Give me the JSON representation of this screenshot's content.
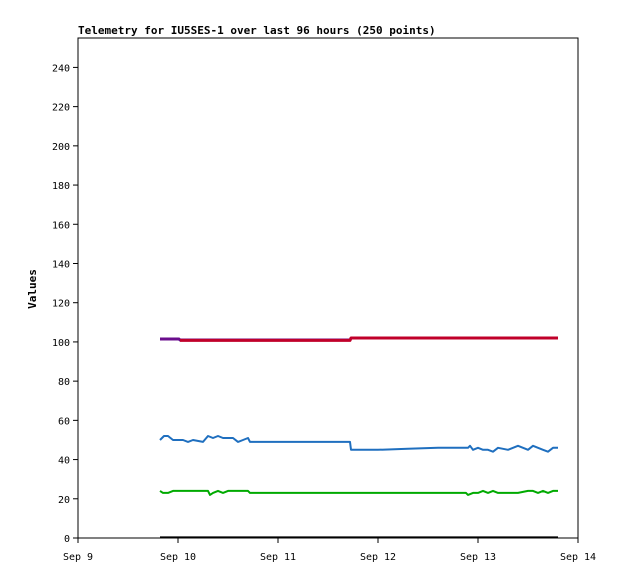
{
  "chart_data": {
    "type": "line",
    "title": "Telemetry for IU5SES-1 over last 96 hours (250 points)",
    "ylabel": "Values",
    "xlabel": "",
    "x_ticks": [
      "Sep 9",
      "Sep 10",
      "Sep 11",
      "Sep 12",
      "Sep 13",
      "Sep 14"
    ],
    "xlim": [
      9.0,
      14.0
    ],
    "ylim": [
      0,
      255
    ],
    "y_ticks": [
      0,
      20,
      40,
      60,
      80,
      100,
      120,
      140,
      160,
      180,
      200,
      220,
      240
    ],
    "grid": false,
    "series": [
      {
        "color": "#6a0d8c",
        "x": [
          9.82,
          10.01,
          10.02,
          11.73
        ],
        "y": [
          101.5,
          101.5,
          101.0,
          101.0
        ]
      },
      {
        "color": "#c0002a",
        "x": [
          10.02,
          11.72,
          11.73,
          13.8
        ],
        "y": [
          100.8,
          100.8,
          102.0,
          102.0
        ]
      },
      {
        "color": "#1f6fbf",
        "x": [
          9.82,
          9.86,
          9.9,
          9.95,
          10.05,
          10.1,
          10.15,
          10.25,
          10.3,
          10.35,
          10.4,
          10.45,
          10.5,
          10.55,
          10.6,
          10.65,
          10.7,
          10.72,
          10.75,
          10.8,
          11.0,
          11.2,
          11.4,
          11.6,
          11.72,
          11.73,
          12.0,
          12.3,
          12.6,
          12.9,
          12.92,
          12.95,
          13.0,
          13.05,
          13.1,
          13.15,
          13.2,
          13.3,
          13.35,
          13.4,
          13.45,
          13.5,
          13.55,
          13.6,
          13.65,
          13.7,
          13.75,
          13.8
        ],
        "y": [
          50,
          52,
          52,
          50,
          50,
          49,
          50,
          49,
          52,
          51,
          52,
          51,
          51,
          51,
          49,
          50,
          51,
          49,
          49,
          49,
          49,
          49,
          49,
          49,
          49,
          45,
          45,
          45.5,
          46,
          46,
          47,
          45,
          46,
          45,
          45,
          44,
          46,
          45,
          46,
          47,
          46,
          45,
          47,
          46,
          45,
          44,
          46,
          46
        ]
      },
      {
        "color": "#00aa00",
        "x": [
          9.82,
          9.85,
          9.9,
          9.95,
          10.1,
          10.3,
          10.32,
          10.35,
          10.4,
          10.45,
          10.5,
          10.55,
          10.7,
          10.72,
          11.0,
          11.5,
          12.0,
          12.5,
          12.88,
          12.9,
          12.95,
          13.0,
          13.05,
          13.1,
          13.15,
          13.2,
          13.25,
          13.3,
          13.4,
          13.5,
          13.55,
          13.6,
          13.65,
          13.7,
          13.75,
          13.8
        ],
        "y": [
          24,
          23,
          23,
          24,
          24,
          24,
          22,
          23,
          24,
          23,
          24,
          24,
          24,
          23,
          23,
          23,
          23,
          23,
          23,
          22,
          23,
          23,
          24,
          23,
          24,
          23,
          23,
          23,
          23,
          24,
          24,
          23,
          24,
          23,
          24,
          24
        ]
      },
      {
        "color": "#000000",
        "x": [
          9.82,
          13.8
        ],
        "y": [
          0.3,
          0.3
        ]
      }
    ]
  }
}
